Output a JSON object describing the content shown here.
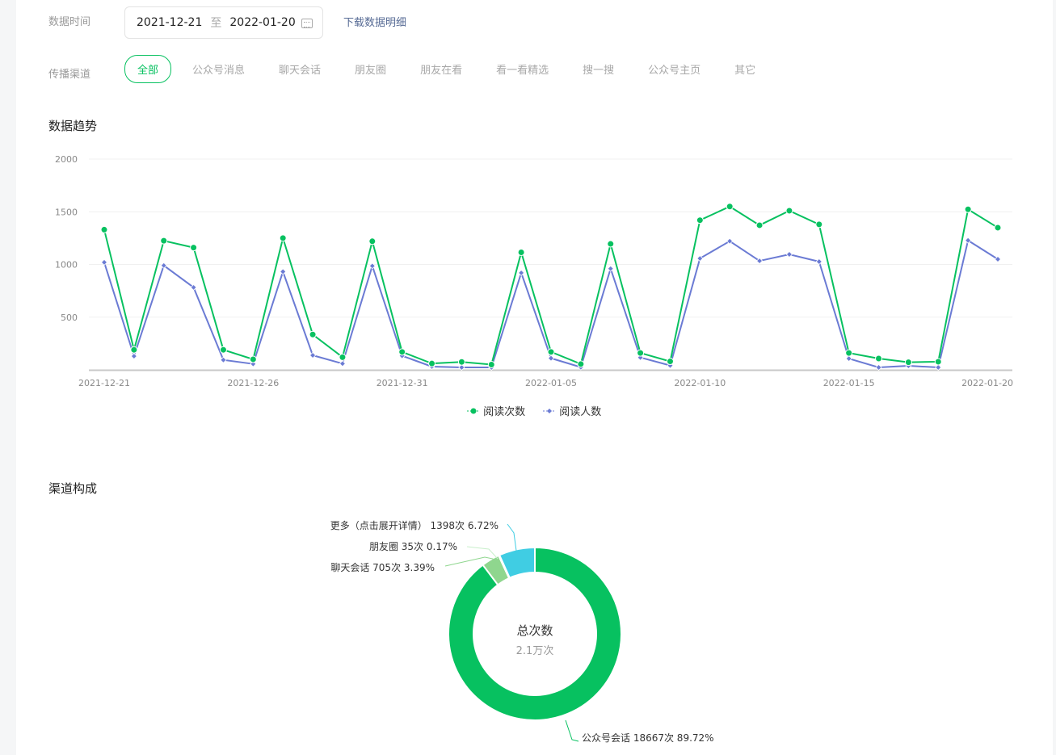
{
  "filters": {
    "date_label": "数据时间",
    "date_start": "2021-12-21",
    "date_sep": "至",
    "date_end": "2022-01-20",
    "download": "下载数据明细",
    "channel_label": "传播渠道",
    "channels": [
      "全部",
      "公众号消息",
      "聊天会话",
      "朋友圈",
      "朋友在看",
      "看一看精选",
      "搜一搜",
      "公众号主页",
      "其它"
    ],
    "active_channel": "全部"
  },
  "trend": {
    "title": "数据趋势"
  },
  "chart_data": [
    {
      "type": "line",
      "ylim": [
        0,
        2000
      ],
      "yticks": [
        500,
        1000,
        1500,
        2000
      ],
      "grid": true,
      "legend": "bottom",
      "xtick_labels": [
        "2021-12-21",
        "2021-12-26",
        "2021-12-31",
        "2022-01-05",
        "2022-01-10",
        "2022-01-15",
        "2022-01-20"
      ],
      "x": [
        "2021-12-21",
        "2021-12-22",
        "2021-12-23",
        "2021-12-24",
        "2021-12-25",
        "2021-12-26",
        "2021-12-27",
        "2021-12-28",
        "2021-12-29",
        "2021-12-30",
        "2021-12-31",
        "2022-01-01",
        "2022-01-02",
        "2022-01-03",
        "2022-01-04",
        "2022-01-05",
        "2022-01-06",
        "2022-01-07",
        "2022-01-08",
        "2022-01-09",
        "2022-01-10",
        "2022-01-11",
        "2022-01-12",
        "2022-01-13",
        "2022-01-14",
        "2022-01-15",
        "2022-01-16",
        "2022-01-17",
        "2022-01-18",
        "2022-01-19",
        "2022-01-20"
      ],
      "series": [
        {
          "name": "阅读次数",
          "color": "#07c160",
          "marker": "circle",
          "values": [
            1330,
            190,
            1225,
            1160,
            190,
            100,
            1250,
            335,
            120,
            1220,
            170,
            60,
            75,
            50,
            1115,
            170,
            55,
            1195,
            160,
            80,
            1420,
            1550,
            1372,
            1510,
            1380,
            160,
            107,
            72,
            77,
            1523,
            1349
          ]
        },
        {
          "name": "阅读人数",
          "color": "#6b7bd4",
          "marker": "diamond",
          "values": [
            1020,
            130,
            990,
            782,
            94,
            56,
            932,
            138,
            59,
            986,
            133,
            31,
            23,
            23,
            920,
            110,
            25,
            960,
            117,
            41,
            1057,
            1221,
            1034,
            1096,
            1027,
            107,
            23,
            38,
            23,
            1228,
            1050
          ]
        }
      ]
    },
    {
      "type": "pie",
      "title": "渠道构成",
      "center_title": "总次数",
      "center_value": "2.1万次",
      "slices": [
        {
          "name": "公众号会话",
          "count": "18667次",
          "percent": 89.72,
          "label": "公众号会话 18667次 89.72%",
          "color": "#07c160"
        },
        {
          "name": "聊天会话",
          "count": "705次",
          "percent": 3.39,
          "label": "聊天会话 705次 3.39%",
          "color": "#8fd68e"
        },
        {
          "name": "朋友圈",
          "count": "35次",
          "percent": 0.17,
          "label": "朋友圈 35次 0.17%",
          "color": "#c9efcb"
        },
        {
          "name": "更多（点击展开详情）",
          "count": "1398次",
          "percent": 6.72,
          "label": "更多（点击展开详情） 1398次 6.72%",
          "color": "#40cde3"
        }
      ]
    }
  ]
}
